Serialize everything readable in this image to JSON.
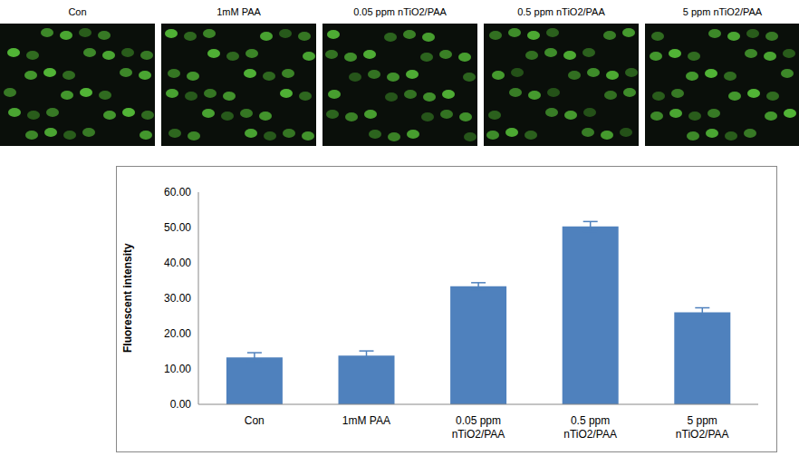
{
  "image_panels": {
    "labels": [
      "Con",
      "1mM PAA",
      "0.05 ppm nTiO2/PAA",
      "0.5 ppm nTiO2/PAA",
      "5 ppm nTiO2/PAA"
    ]
  },
  "chart_data": {
    "type": "bar",
    "y_label": "Fluorescent intensity",
    "categories": [
      "Con",
      "1mM PAA",
      "0.05 ppm nTiO2/PAA",
      "0.5 ppm nTiO2/PAA",
      "5 ppm nTiO2/PAA"
    ],
    "values": [
      13.3,
      13.8,
      33.4,
      50.3,
      26.0
    ],
    "errors": [
      1.3,
      1.3,
      1.0,
      1.4,
      1.3
    ],
    "color": "#4f81bd",
    "ylim": [
      0,
      60
    ],
    "yticks": [
      {
        "value": 0,
        "label": "0.00"
      },
      {
        "value": 10,
        "label": "10.00"
      },
      {
        "value": 20,
        "label": "20.00"
      },
      {
        "value": 30,
        "label": "30.00"
      },
      {
        "value": 40,
        "label": "40.00"
      },
      {
        "value": 50,
        "label": "50.00"
      },
      {
        "value": 60,
        "label": "60.00"
      }
    ],
    "grid": false
  }
}
